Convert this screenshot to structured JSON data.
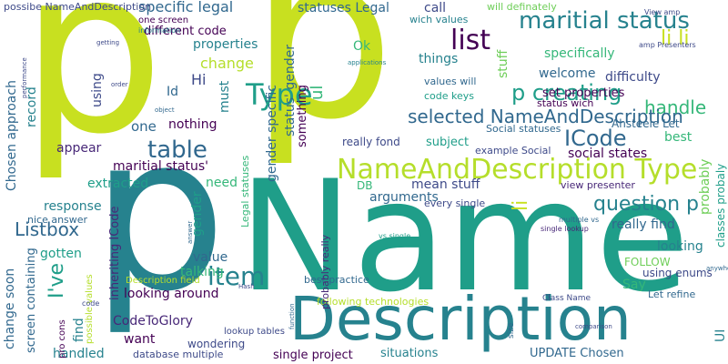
{
  "palette": {
    "dark_purple": "#440154",
    "indigo": "#482878",
    "blue": "#3e4a89",
    "steel": "#31688e",
    "teal": "#26828e",
    "green_teal": "#1f9e89",
    "green": "#35b779",
    "lime": "#6ece58",
    "yellow_green": "#b5de2b",
    "chartreuse": "#c8e020"
  },
  "words": [
    {
      "text": "p",
      "color": "#c8e020"
    },
    {
      "text": "p",
      "color": "#c8e020"
    },
    {
      "text": "p",
      "color": "#26828e"
    },
    {
      "text": "Name",
      "color": "#1f9e89"
    },
    {
      "text": "Description",
      "color": "#26828e"
    },
    {
      "text": "NameAndDescription Type",
      "color": "#b5de2b"
    },
    {
      "text": "Type",
      "color": "#1f9e89"
    },
    {
      "text": "maritial status",
      "color": "#26828e"
    },
    {
      "text": "list",
      "color": "#440154"
    },
    {
      "text": "li li",
      "color": "#c8e020"
    },
    {
      "text": "p creating",
      "color": "#1f9e89"
    },
    {
      "text": "handle",
      "color": "#35b779"
    },
    {
      "text": "selected NameAndDescription",
      "color": "#31688e"
    },
    {
      "text": "table",
      "color": "#31688e"
    },
    {
      "text": "ICode",
      "color": "#31688e"
    },
    {
      "text": "question p",
      "color": "#26828e"
    },
    {
      "text": "item",
      "color": "#26828e"
    },
    {
      "text": "Listbox",
      "color": "#31688e"
    },
    {
      "text": "specific legal",
      "color": "#31688e"
    },
    {
      "text": "statuses Legal",
      "color": "#31688e"
    },
    {
      "text": "possibe NameAndDescription",
      "color": "#3e4a89"
    },
    {
      "text": "different code",
      "color": "#440154"
    },
    {
      "text": "properties",
      "color": "#26828e"
    },
    {
      "text": "change",
      "color": "#b5de2b"
    },
    {
      "text": "Hi",
      "color": "#3e4a89"
    },
    {
      "text": "Id",
      "color": "#31688e"
    },
    {
      "text": "one",
      "color": "#31688e"
    },
    {
      "text": "nothing",
      "color": "#440154"
    },
    {
      "text": "appear",
      "color": "#482878"
    },
    {
      "text": "maritial status'",
      "color": "#440154"
    },
    {
      "text": "extracted",
      "color": "#1f9e89"
    },
    {
      "text": "need",
      "color": "#35b779"
    },
    {
      "text": "response",
      "color": "#26828e"
    },
    {
      "text": "nice answer",
      "color": "#31688e"
    },
    {
      "text": "gotten",
      "color": "#1f9e89"
    },
    {
      "text": "arguments",
      "color": "#31688e"
    },
    {
      "text": "DB",
      "color": "#35b779"
    },
    {
      "text": "mean stuff",
      "color": "#3e4a89"
    },
    {
      "text": "subject",
      "color": "#1f9e89"
    },
    {
      "text": "really fond",
      "color": "#3e4a89"
    },
    {
      "text": "example Social",
      "color": "#3e4a89"
    },
    {
      "text": "social states",
      "color": "#440154"
    },
    {
      "text": "best",
      "color": "#35b779"
    },
    {
      "text": "things",
      "color": "#26828e"
    },
    {
      "text": "welcome",
      "color": "#31688e"
    },
    {
      "text": "difficulty",
      "color": "#3e4a89"
    },
    {
      "text": "set properties",
      "color": "#440154"
    },
    {
      "text": "values will",
      "color": "#31688e"
    },
    {
      "text": "code keys",
      "color": "#1f9e89"
    },
    {
      "text": "status wich",
      "color": "#440154"
    },
    {
      "text": "Ahsteele Let",
      "color": "#31688e"
    },
    {
      "text": "Social statuses",
      "color": "#31688e"
    },
    {
      "text": "call",
      "color": "#3e4a89"
    },
    {
      "text": "wich values",
      "color": "#26828e"
    },
    {
      "text": "will definately",
      "color": "#6ece58"
    },
    {
      "text": "specifically",
      "color": "#35b779"
    },
    {
      "text": "Ok",
      "color": "#35b779"
    },
    {
      "text": "looking",
      "color": "#26828e"
    },
    {
      "text": "looking around",
      "color": "#440154"
    },
    {
      "text": "really find",
      "color": "#31688e"
    },
    {
      "text": "FOLLOW",
      "color": "#6ece58"
    },
    {
      "text": "Say",
      "color": "#35b779"
    },
    {
      "text": "value",
      "color": "#31688e"
    },
    {
      "text": "talking",
      "color": "#35b779"
    },
    {
      "text": "CodeToGlory",
      "color": "#482878"
    },
    {
      "text": "want",
      "color": "#440154"
    },
    {
      "text": "wondering",
      "color": "#3e4a89"
    },
    {
      "text": "situations",
      "color": "#26828e"
    },
    {
      "text": "UPDATE Chosen",
      "color": "#31688e"
    },
    {
      "text": "handled",
      "color": "#26828e"
    },
    {
      "text": "database multiple",
      "color": "#3e4a89"
    },
    {
      "text": "single project",
      "color": "#440154"
    },
    {
      "text": "every single",
      "color": "#3e4a89"
    },
    {
      "text": "view presenter",
      "color": "#482878"
    },
    {
      "text": "using enums",
      "color": "#3e4a89"
    },
    {
      "text": "Let refine",
      "color": "#31688e"
    },
    {
      "text": "following technologies",
      "color": "#b5de2b"
    },
    {
      "text": "best practice",
      "color": "#31688e"
    },
    {
      "text": "Description field",
      "color": "#b5de2b"
    },
    {
      "text": "change soon",
      "color": "#31688e"
    },
    {
      "text": "Chosen approach",
      "color": "#31688e"
    },
    {
      "text": "record",
      "color": "#26828e"
    },
    {
      "text": "I've",
      "color": "#1f9e89"
    },
    {
      "text": "find",
      "color": "#26828e"
    },
    {
      "text": "using",
      "color": "#3e4a89"
    },
    {
      "text": "must",
      "color": "#26828e"
    },
    {
      "text": "gender",
      "color": "#1f9e89"
    },
    {
      "text": "gender specific",
      "color": "#31688e"
    },
    {
      "text": "status' gender",
      "color": "#31688e"
    },
    {
      "text": "something",
      "color": "#440154"
    },
    {
      "text": "ul",
      "color": "#35b779"
    },
    {
      "text": "stuff",
      "color": "#6ece58"
    },
    {
      "text": "li",
      "color": "#c8e020"
    },
    {
      "text": "probably",
      "color": "#6ece58"
    },
    {
      "text": "classes probaly",
      "color": "#1f9e89"
    },
    {
      "text": "UI",
      "color": "#26828e"
    },
    {
      "text": "inheriting ICode",
      "color": "#482878"
    },
    {
      "text": "screen containing",
      "color": "#31688e"
    },
    {
      "text": "possible values",
      "color": "#b5de2b"
    },
    {
      "text": "pro cons",
      "color": "#440154"
    },
    {
      "text": "probably really",
      "color": "#482878"
    },
    {
      "text": "Legal statuses",
      "color": "#35b779"
    },
    {
      "text": "one screen",
      "color": "#440154"
    },
    {
      "text": "information",
      "color": "#26828e"
    },
    {
      "text": "View amp",
      "color": "#3e4a89"
    },
    {
      "text": "amp Presenters",
      "color": "#3e4a89"
    },
    {
      "text": "multiple vs",
      "color": "#31688e"
    },
    {
      "text": "single lookup",
      "color": "#482878"
    },
    {
      "text": "vs single",
      "color": "#1f9e89"
    },
    {
      "text": "lookup tables",
      "color": "#3e4a89"
    },
    {
      "text": "Class Name",
      "color": "#3e4a89"
    },
    {
      "text": "size",
      "color": "#31688e"
    },
    {
      "text": "code",
      "color": "#3e4a89"
    },
    {
      "text": "Hash",
      "color": "#3e4a89"
    },
    {
      "text": "function",
      "color": "#31688e"
    },
    {
      "text": "performance",
      "color": "#3e4a89"
    },
    {
      "text": "object",
      "color": "#31688e"
    },
    {
      "text": "answer",
      "color": "#31688e"
    },
    {
      "text": "anywhere",
      "color": "#31688e"
    },
    {
      "text": "comparison",
      "color": "#3e4a89"
    },
    {
      "text": "getting",
      "color": "#3e4a89"
    },
    {
      "text": "order",
      "color": "#3e4a89"
    },
    {
      "text": "applications",
      "color": "#26828e"
    }
  ]
}
